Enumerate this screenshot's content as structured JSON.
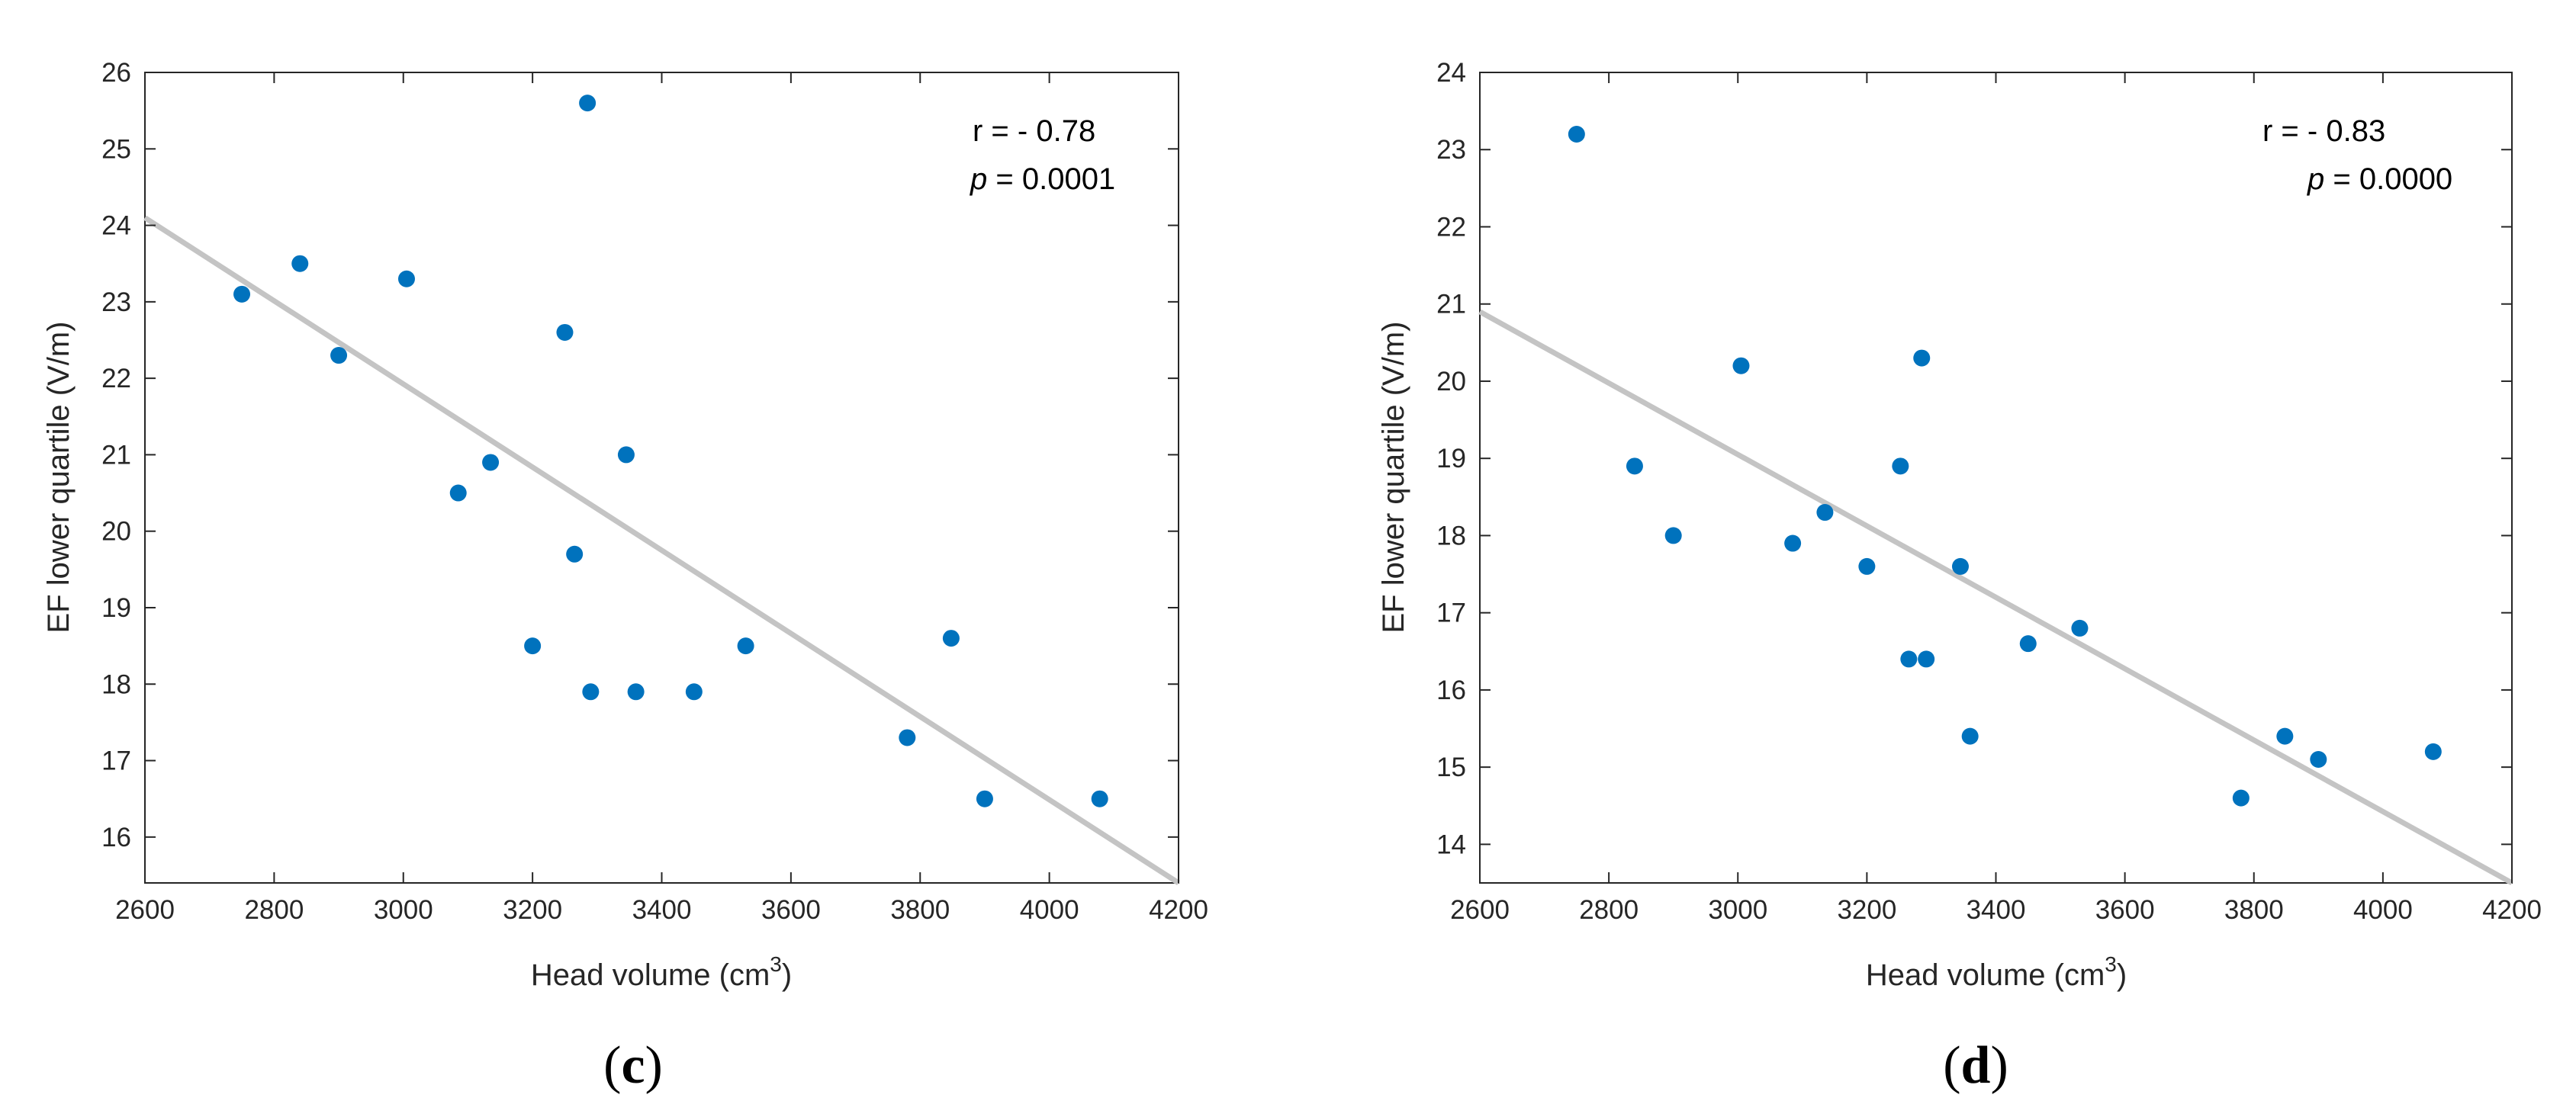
{
  "chart_data": [
    {
      "type": "scatter",
      "panel_label": "c",
      "xlabel": "Head volume (cm",
      "xlabel_sup": "3",
      "xlabel_end": ")",
      "ylabel": "EF lower quartile (V/m)",
      "xlim": [
        2600,
        4200
      ],
      "ylim": [
        15.4,
        26
      ],
      "xticks": [
        "2600",
        "2800",
        "3000",
        "3200",
        "3400",
        "3600",
        "3800",
        "4000",
        "4200"
      ],
      "yticks": [
        "16",
        "17",
        "18",
        "19",
        "20",
        "21",
        "22",
        "23",
        "24",
        "25",
        "26"
      ],
      "points": [
        [
          2750,
          23.1
        ],
        [
          2840,
          23.5
        ],
        [
          2900,
          22.3
        ],
        [
          3005,
          23.3
        ],
        [
          3085,
          20.5
        ],
        [
          3135,
          20.9
        ],
        [
          3200,
          18.5
        ],
        [
          3250,
          22.6
        ],
        [
          3265,
          19.7
        ],
        [
          3285,
          25.6
        ],
        [
          3290,
          17.9
        ],
        [
          3345,
          21.0
        ],
        [
          3360,
          17.9
        ],
        [
          3450,
          17.9
        ],
        [
          3530,
          18.5
        ],
        [
          3780,
          17.3
        ],
        [
          3848,
          18.6
        ],
        [
          3900,
          16.5
        ],
        [
          4078,
          16.5
        ]
      ],
      "fit_line": {
        "x": [
          2600,
          4200
        ],
        "y": [
          24.1,
          15.4
        ]
      },
      "annotation": {
        "r_text": "r = - 0.78",
        "p_label": "p",
        "p_text": " = 0.0001"
      },
      "marker_color": "#0072bd",
      "fit_color": "#c4c4c4"
    },
    {
      "type": "scatter",
      "panel_label": "d",
      "xlabel": "Head volume (cm",
      "xlabel_sup": "3",
      "xlabel_end": ")",
      "ylabel": "EF lower quartile (V/m)",
      "xlim": [
        2600,
        4200
      ],
      "ylim": [
        13.5,
        24
      ],
      "xticks": [
        "2600",
        "2800",
        "3000",
        "3200",
        "3400",
        "3600",
        "3800",
        "4000",
        "4200"
      ],
      "yticks": [
        "14",
        "15",
        "16",
        "17",
        "18",
        "19",
        "20",
        "21",
        "22",
        "23",
        "24"
      ],
      "points": [
        [
          2750,
          23.2
        ],
        [
          2840,
          18.9
        ],
        [
          2900,
          18.0
        ],
        [
          3005,
          20.2
        ],
        [
          3085,
          17.9
        ],
        [
          3135,
          18.3
        ],
        [
          3200,
          17.6
        ],
        [
          3252,
          18.9
        ],
        [
          3265,
          16.4
        ],
        [
          3285,
          20.3
        ],
        [
          3292,
          16.4
        ],
        [
          3345,
          17.6
        ],
        [
          3360,
          15.4
        ],
        [
          3450,
          16.6
        ],
        [
          3530,
          16.8
        ],
        [
          3780,
          14.6
        ],
        [
          3848,
          15.4
        ],
        [
          3900,
          15.1
        ],
        [
          4078,
          15.2
        ]
      ],
      "fit_line": {
        "x": [
          2600,
          4200
        ],
        "y": [
          20.9,
          13.5
        ]
      },
      "annotation": {
        "r_text": "r = - 0.83",
        "p_label": "p",
        "p_text": " = 0.0000"
      },
      "marker_color": "#0072bd",
      "fit_color": "#c4c4c4"
    }
  ]
}
